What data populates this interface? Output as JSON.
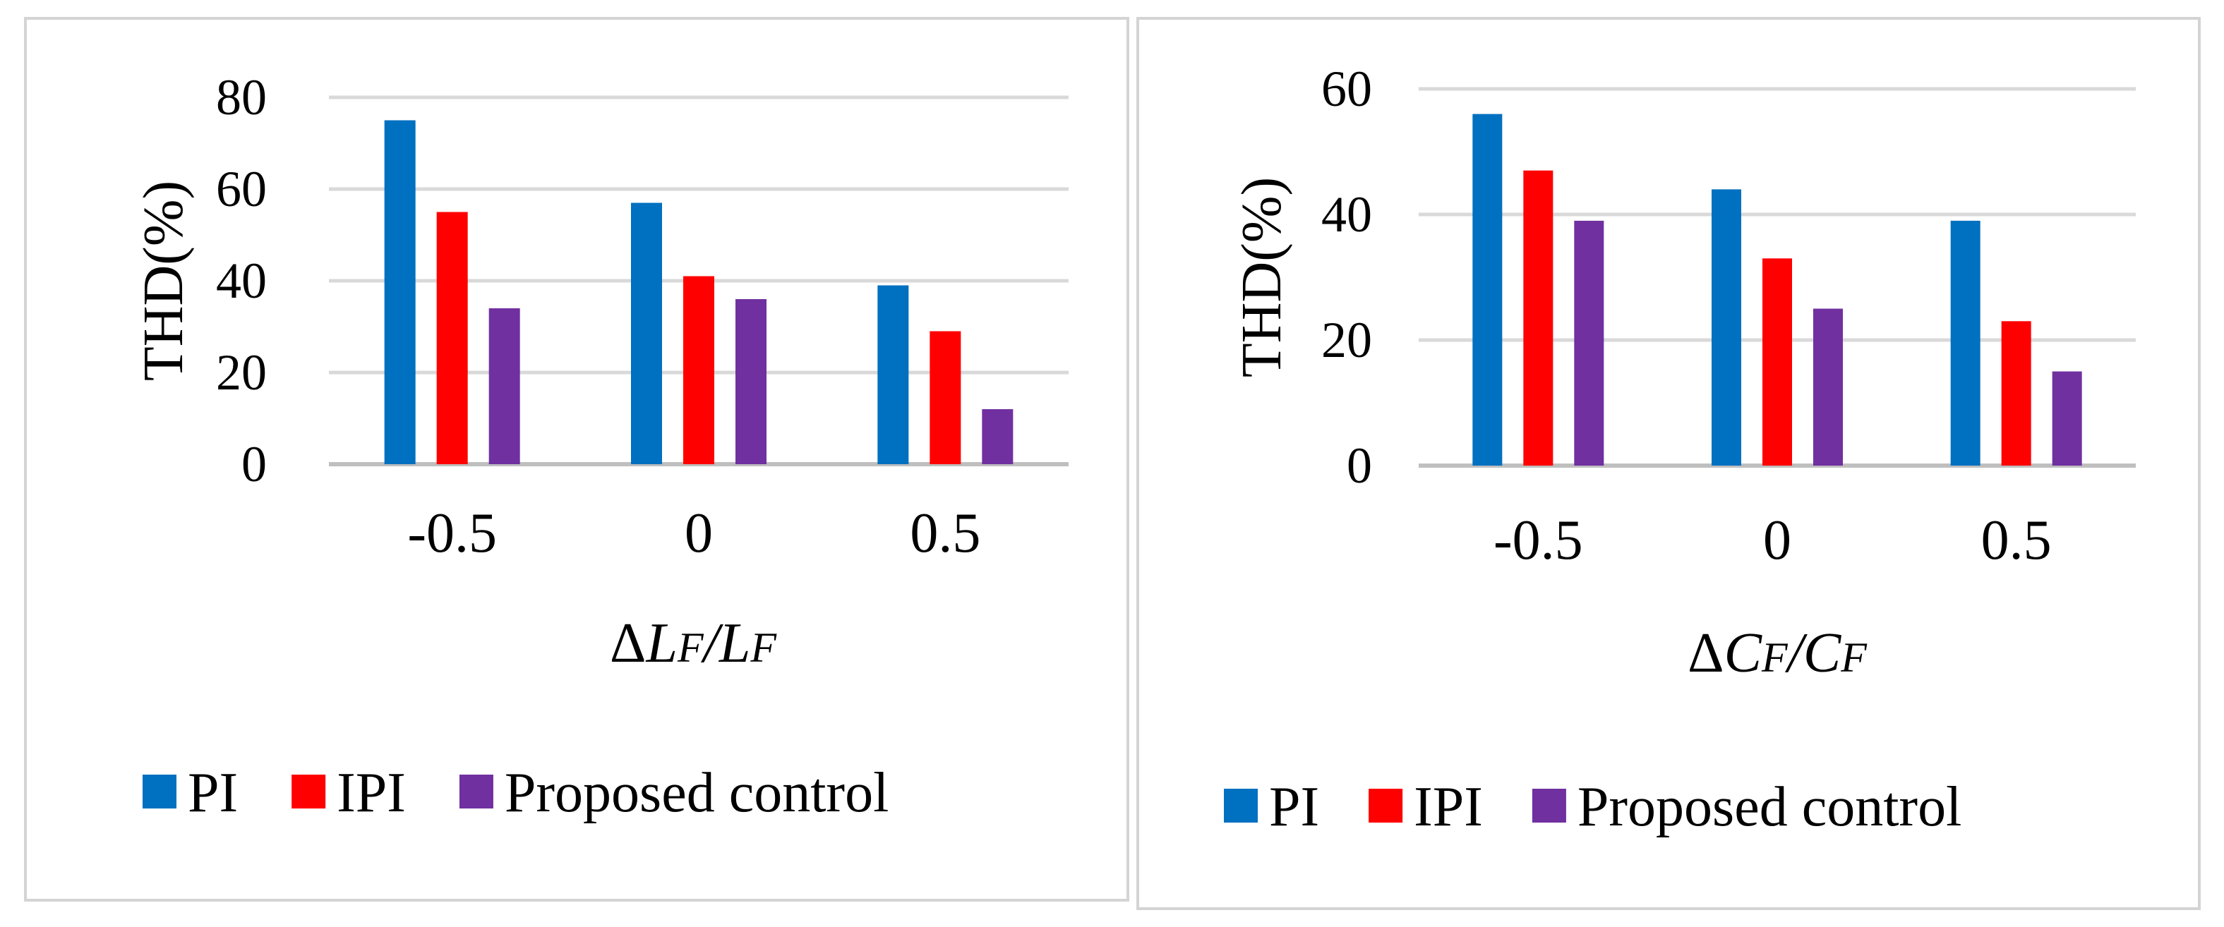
{
  "colors": {
    "pi": "#0070c0",
    "ipi": "#ff0000",
    "proposed": "#7030a0",
    "grid": "#d9d9d9",
    "border": "#d4d4d4"
  },
  "chart_data": [
    {
      "type": "bar",
      "title": "",
      "xlabel": "ΔLF/LF",
      "xlabel_parts": {
        "delta": "Δ",
        "var": "L",
        "sub": "F",
        "slash": "/"
      },
      "ylabel": "THD(%)",
      "ylim": [
        0,
        80
      ],
      "yticks": [
        "0",
        "20",
        "40",
        "60",
        "80"
      ],
      "categories": [
        "-0.5",
        "0",
        "0.5"
      ],
      "legend_position": "bottom",
      "series": [
        {
          "name": "PI",
          "values": [
            75,
            57,
            39
          ]
        },
        {
          "name": "IPI",
          "values": [
            55,
            41,
            29
          ]
        },
        {
          "name": "Proposed control",
          "values": [
            34,
            36,
            12
          ]
        }
      ]
    },
    {
      "type": "bar",
      "title": "",
      "xlabel": "ΔCF/CF",
      "xlabel_parts": {
        "delta": "Δ",
        "var": "C",
        "sub": "F",
        "slash": "/"
      },
      "ylabel": "THD(%)",
      "ylim": [
        0,
        60
      ],
      "yticks": [
        "0",
        "20",
        "40",
        "60"
      ],
      "categories": [
        "-0.5",
        "0",
        "0.5"
      ],
      "legend_position": "bottom",
      "series": [
        {
          "name": "PI",
          "values": [
            56,
            44,
            39
          ]
        },
        {
          "name": "IPI",
          "values": [
            47,
            33,
            23
          ]
        },
        {
          "name": "Proposed control",
          "values": [
            39,
            25,
            15
          ]
        }
      ]
    }
  ]
}
